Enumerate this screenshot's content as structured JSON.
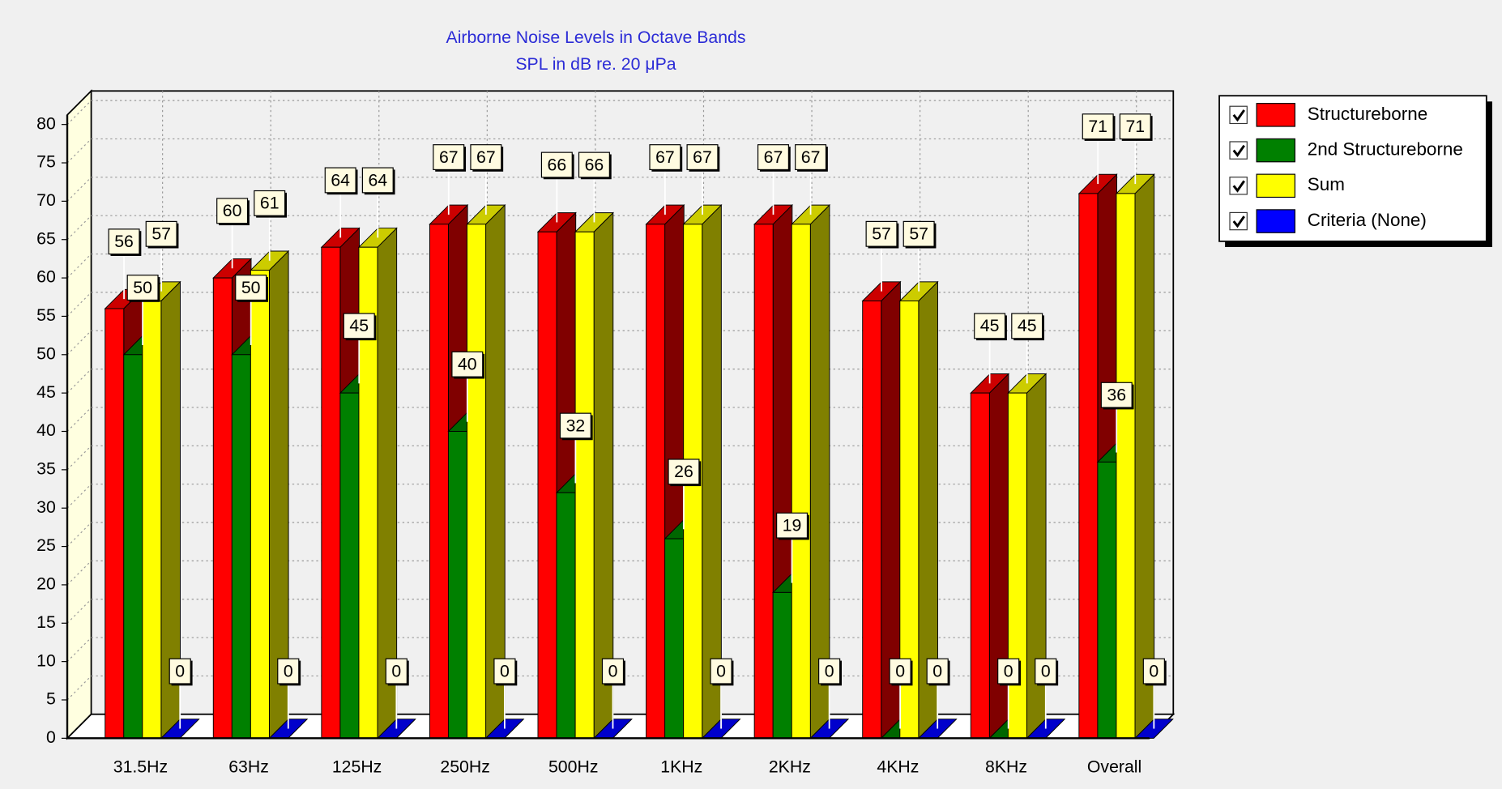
{
  "chart_data": {
    "type": "bar",
    "title": "Airborne Noise Levels in Octave Bands",
    "subtitle": "SPL in dB re. 20 μPa",
    "categories": [
      "31.5Hz",
      "63Hz",
      "125Hz",
      "250Hz",
      "500Hz",
      "1KHz",
      "2KHz",
      "4KHz",
      "8KHz",
      "Overall"
    ],
    "series": [
      {
        "name": "Structureborne",
        "color": "#ff0000",
        "values": [
          56,
          60,
          64,
          67,
          66,
          67,
          67,
          57,
          45,
          71
        ]
      },
      {
        "name": "2nd Structureborne",
        "color": "#008000",
        "values": [
          50,
          50,
          45,
          40,
          32,
          26,
          19,
          0,
          0,
          36
        ]
      },
      {
        "name": "Sum",
        "color": "#ffff00",
        "values": [
          57,
          61,
          64,
          67,
          66,
          67,
          67,
          57,
          45,
          71
        ]
      },
      {
        "name": "Criteria (None)",
        "color": "#0000ff",
        "values": [
          0,
          0,
          0,
          0,
          0,
          0,
          0,
          0,
          0,
          0
        ]
      }
    ],
    "ylim": [
      0,
      80
    ],
    "yticks": [
      0,
      5,
      10,
      15,
      20,
      25,
      30,
      35,
      40,
      45,
      50,
      55,
      60,
      65,
      70,
      75,
      80
    ],
    "grid": true,
    "legend": "top-right"
  }
}
